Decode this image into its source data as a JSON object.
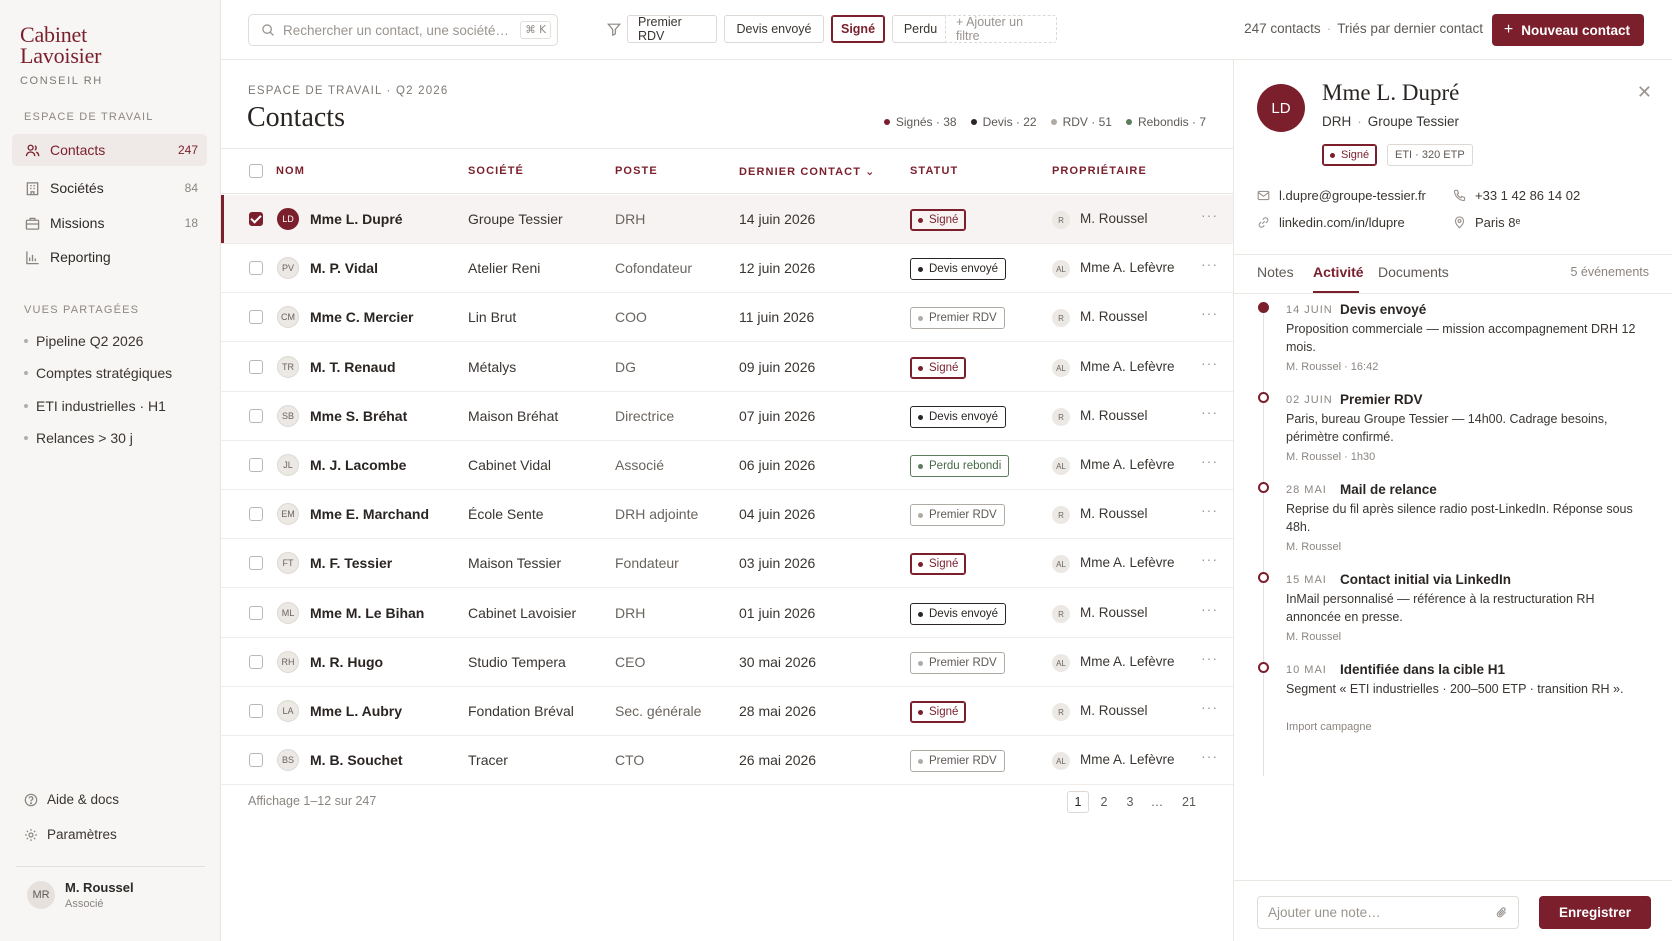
{
  "brand": {
    "line1": "Cabinet",
    "line2": "Lavoisier",
    "subtitle": "CONSEIL RH"
  },
  "sidebar": {
    "workspace_title": "ESPACE DE TRAVAIL",
    "items": [
      {
        "label": "Contacts",
        "count": "247",
        "icon": "users-icon"
      },
      {
        "label": "Sociétés",
        "count": "84",
        "icon": "building-icon"
      },
      {
        "label": "Missions",
        "count": "18",
        "icon": "briefcase-icon"
      },
      {
        "label": "Reporting",
        "count": "",
        "icon": "bar-chart-icon"
      }
    ],
    "views_title": "VUES PARTAGÉES",
    "views": [
      "Pipeline Q2 2026",
      "Comptes stratégiques",
      "ETI industrielles · H1",
      "Relances > 30 j"
    ],
    "help": "Aide & docs",
    "settings": "Paramètres",
    "user": {
      "initials": "MR",
      "name": "M. Roussel",
      "role": "Associé"
    }
  },
  "topbar": {
    "search_placeholder": "Rechercher un contact, une société…",
    "shortcut": "⌘ K",
    "filters": [
      "Premier RDV",
      "Devis envoyé",
      "Signé",
      "Perdu"
    ],
    "active_filter": "Signé",
    "add_filter": "+ Ajouter un filtre",
    "count": "247 contacts",
    "sort": "Triés par dernier contact",
    "new_contact": "Nouveau contact"
  },
  "main": {
    "breadcrumb": "ESPACE DE TRAVAIL · Q2 2026",
    "title": "Contacts",
    "legend": [
      {
        "label": "Signés · 38",
        "color": "#7a1f2b"
      },
      {
        "label": "Devis · 22",
        "color": "#2a2522"
      },
      {
        "label": "RDV · 51",
        "color": "#b0aaa5"
      },
      {
        "label": "Rebondis · 7",
        "color": "#5b7d5b"
      }
    ],
    "columns": [
      "NOM",
      "SOCIÉTÉ",
      "POSTE",
      "DERNIER CONTACT ⌄",
      "STATUT",
      "PROPRIÉTAIRE"
    ],
    "rows": [
      {
        "initials": "LD",
        "name": "Mme L. Dupré",
        "company": "Groupe Tessier",
        "role": "DRH",
        "date": "14 juin 2026",
        "status": "Signé",
        "kind": "signed",
        "owner_initials": "R",
        "owner": "M. Roussel",
        "selected": true
      },
      {
        "initials": "PV",
        "name": "M. P. Vidal",
        "company": "Atelier Reni",
        "role": "Cofondateur",
        "date": "12 juin 2026",
        "status": "Devis envoyé",
        "kind": "devis",
        "owner_initials": "AL",
        "owner": "Mme A. Lefèvre"
      },
      {
        "initials": "CM",
        "name": "Mme C. Mercier",
        "company": "Lin Brut",
        "role": "COO",
        "date": "11 juin 2026",
        "status": "Premier RDV",
        "kind": "rdv",
        "owner_initials": "R",
        "owner": "M. Roussel"
      },
      {
        "initials": "TR",
        "name": "M. T. Renaud",
        "company": "Métalys",
        "role": "DG",
        "date": "09 juin 2026",
        "status": "Signé",
        "kind": "signed",
        "owner_initials": "AL",
        "owner": "Mme A. Lefèvre"
      },
      {
        "initials": "SB",
        "name": "Mme S. Bréhat",
        "company": "Maison Bréhat",
        "role": "Directrice",
        "date": "07 juin 2026",
        "status": "Devis envoyé",
        "kind": "devis",
        "owner_initials": "R",
        "owner": "M. Roussel"
      },
      {
        "initials": "JL",
        "name": "M. J. Lacombe",
        "company": "Cabinet Vidal",
        "role": "Associé",
        "date": "06 juin 2026",
        "status": "Perdu rebondi",
        "kind": "perdu",
        "owner_initials": "AL",
        "owner": "Mme A. Lefèvre"
      },
      {
        "initials": "EM",
        "name": "Mme E. Marchand",
        "company": "École Sente",
        "role": "DRH adjointe",
        "date": "04 juin 2026",
        "status": "Premier RDV",
        "kind": "rdv",
        "owner_initials": "R",
        "owner": "M. Roussel"
      },
      {
        "initials": "FT",
        "name": "M. F. Tessier",
        "company": "Maison Tessier",
        "role": "Fondateur",
        "date": "03 juin 2026",
        "status": "Signé",
        "kind": "signed",
        "owner_initials": "AL",
        "owner": "Mme A. Lefèvre"
      },
      {
        "initials": "ML",
        "name": "Mme M. Le Bihan",
        "company": "Cabinet Lavoisier",
        "role": "DRH",
        "date": "01 juin 2026",
        "status": "Devis envoyé",
        "kind": "devis",
        "owner_initials": "R",
        "owner": "M. Roussel"
      },
      {
        "initials": "RH",
        "name": "M. R. Hugo",
        "company": "Studio Tempera",
        "role": "CEO",
        "date": "30 mai 2026",
        "status": "Premier RDV",
        "kind": "rdv",
        "owner_initials": "AL",
        "owner": "Mme A. Lefèvre"
      },
      {
        "initials": "LA",
        "name": "Mme L. Aubry",
        "company": "Fondation Bréval",
        "role": "Sec. générale",
        "date": "28 mai 2026",
        "status": "Signé",
        "kind": "signed",
        "owner_initials": "R",
        "owner": "M. Roussel"
      },
      {
        "initials": "BS",
        "name": "M. B. Souchet",
        "company": "Tracer",
        "role": "CTO",
        "date": "26 mai 2026",
        "status": "Premier RDV",
        "kind": "rdv",
        "owner_initials": "AL",
        "owner": "Mme A. Lefèvre"
      }
    ],
    "pager_info": "Affichage 1–12 sur 247",
    "pages": [
      "1",
      "2",
      "3",
      "…",
      "21"
    ]
  },
  "panel": {
    "initials": "LD",
    "name": "Mme L. Dupré",
    "role": "DRH",
    "company": "Groupe Tessier",
    "status": "Signé",
    "segment": "ETI · 320 ETP",
    "email": "l.dupre@groupe-tessier.fr",
    "phone": "+33 1 42 86 14 02",
    "linkedin": "linkedin.com/in/ldupre",
    "location": "Paris 8ᵉ",
    "tabs": [
      "Notes",
      "Activité",
      "Documents"
    ],
    "event_count": "5 événements",
    "events": [
      {
        "date": "14 JUIN",
        "title": "Devis envoyé",
        "desc": "Proposition commerciale — mission accompagnement DRH 12 mois.",
        "meta": "M. Roussel · 16:42"
      },
      {
        "date": "02 JUIN",
        "title": "Premier RDV",
        "desc": "Paris, bureau Groupe Tessier — 14h00. Cadrage besoins, périmètre confirmé.",
        "meta": "M. Roussel · 1h30"
      },
      {
        "date": "28 MAI",
        "title": "Mail de relance",
        "desc": "Reprise du fil après silence radio post-LinkedIn. Réponse sous 48h.",
        "meta": "M. Roussel"
      },
      {
        "date": "15 MAI",
        "title": "Contact initial via LinkedIn",
        "desc": "InMail personnalisé — référence à la restructuration RH annoncée en presse.",
        "meta": "M. Roussel"
      },
      {
        "date": "10 MAI",
        "title": "Identifiée dans la cible H1",
        "desc": "Segment « ETI industrielles · 200–500 ETP · transition RH ».",
        "meta": "Import campagne"
      }
    ],
    "note_placeholder": "Ajouter une note…",
    "save": "Enregistrer"
  }
}
